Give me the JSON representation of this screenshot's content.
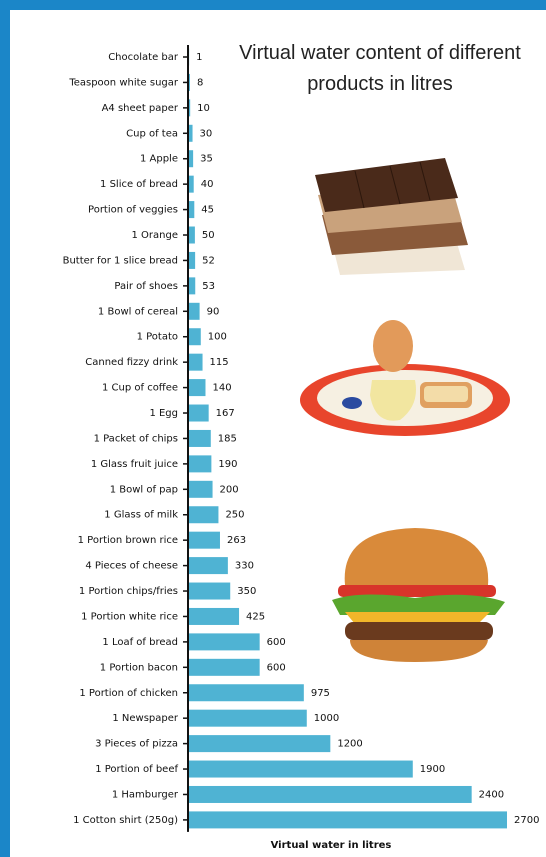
{
  "chart_data": {
    "type": "barh",
    "title": "Virtual water content of different products in litres",
    "xlabel": "Virtual water in litres",
    "categories": [
      "Chocolate bar",
      "Teaspoon white sugar",
      "A4 sheet paper",
      "Cup of tea",
      "1 Apple",
      "1 Slice of bread",
      "Portion of veggies",
      "1 Orange",
      "Butter for 1 slice bread",
      "Pair of shoes",
      "1 Bowl of cereal",
      "1 Potato",
      "Canned fizzy drink",
      "1 Cup of coffee",
      "1 Egg",
      "1 Packet of chips",
      "1 Glass fruit juice",
      "1 Bowl of pap",
      "1 Glass of milk",
      "1 Portion brown rice",
      "4 Pieces of cheese",
      "1 Portion chips/fries",
      "1 Portion white rice",
      "1 Loaf of bread",
      "1 Portion bacon",
      "1 Portion of chicken",
      "1 Newspaper",
      "3 Pieces of pizza",
      "1 Portion of beef",
      "1 Hamburger",
      "1 Cotton shirt (250g)"
    ],
    "values": [
      1,
      8,
      10,
      30,
      35,
      40,
      45,
      50,
      52,
      53,
      90,
      100,
      115,
      140,
      167,
      185,
      190,
      200,
      250,
      263,
      330,
      350,
      425,
      600,
      600,
      975,
      1000,
      1200,
      1900,
      2400,
      2700
    ],
    "color": "#4fb3d3",
    "xlim": [
      0,
      2700
    ]
  }
}
